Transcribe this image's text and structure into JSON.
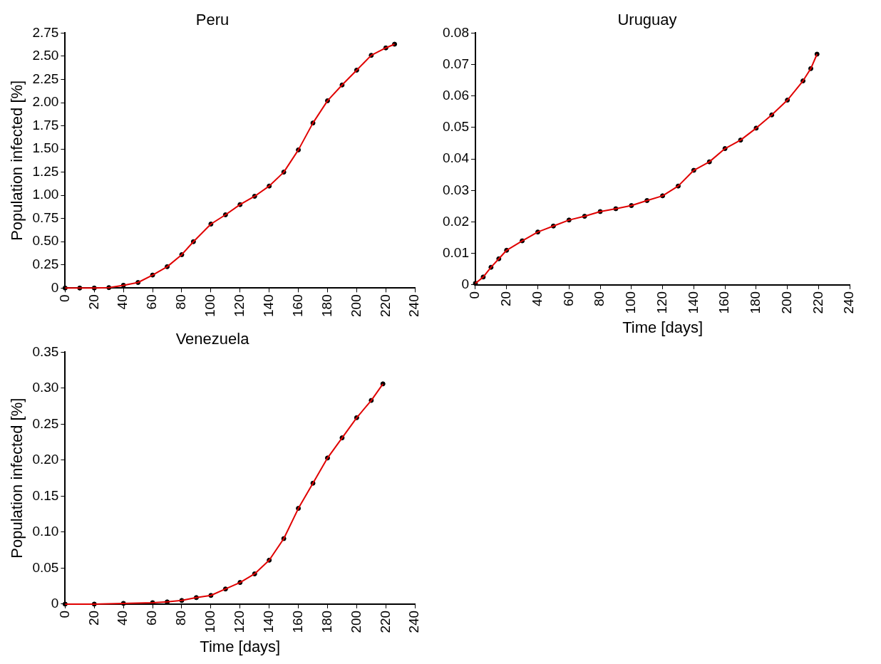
{
  "chart_data": [
    {
      "type": "scatter",
      "title": "Peru",
      "ylabel": "Population infected [%]",
      "xlim": [
        0,
        240
      ],
      "xticks": [
        0,
        20,
        40,
        60,
        80,
        100,
        120,
        140,
        160,
        180,
        200,
        220,
        240
      ],
      "ylim": [
        0,
        2.75
      ],
      "yticks": [
        0,
        {
          "value": 0.25,
          "label": "0.25"
        },
        {
          "value": 0.5,
          "label": "0.50"
        },
        {
          "value": 0.75,
          "label": "0.75"
        },
        {
          "value": 1,
          "label": "1.00"
        },
        {
          "value": 1.25,
          "label": "1.25"
        },
        {
          "value": 1.5,
          "label": "1.50"
        },
        {
          "value": 1.75,
          "label": "1.75"
        },
        {
          "value": 2,
          "label": "2.00"
        },
        {
          "value": 2.25,
          "label": "2.25"
        },
        {
          "value": 2.5,
          "label": "2.50"
        },
        {
          "value": 2.75,
          "label": "2.75"
        }
      ],
      "grid": false,
      "legend": false,
      "series": [
        {
          "type": "scatter",
          "marker": "circle",
          "color": "#000000",
          "x": [
            0,
            10,
            20,
            30,
            40,
            50,
            60,
            70,
            80,
            88,
            100,
            110,
            120,
            130,
            140,
            150,
            160,
            170,
            180,
            190,
            200,
            210,
            220,
            226
          ],
          "values": [
            0,
            0,
            0,
            0.005,
            0.03,
            0.06,
            0.14,
            0.23,
            0.36,
            0.5,
            0.69,
            0.79,
            0.9,
            0.99,
            1.1,
            1.25,
            1.49,
            1.78,
            2.02,
            2.19,
            2.35,
            2.51,
            2.59,
            2.63
          ]
        },
        {
          "type": "line",
          "marker": "none",
          "color": "#e00000",
          "x": [
            0,
            10,
            20,
            30,
            40,
            50,
            60,
            70,
            80,
            88,
            100,
            110,
            120,
            130,
            140,
            150,
            160,
            170,
            180,
            190,
            200,
            210,
            220,
            226
          ],
          "values": [
            0,
            0,
            0,
            0.005,
            0.03,
            0.06,
            0.14,
            0.23,
            0.36,
            0.5,
            0.69,
            0.79,
            0.9,
            0.99,
            1.1,
            1.25,
            1.49,
            1.78,
            2.02,
            2.19,
            2.35,
            2.51,
            2.59,
            2.63
          ]
        }
      ]
    },
    {
      "type": "scatter",
      "title": "Uruguay",
      "xlabel": "Time [days]",
      "xlim": [
        0,
        240
      ],
      "xticks": [
        0,
        20,
        40,
        60,
        80,
        100,
        120,
        140,
        160,
        180,
        200,
        220,
        240
      ],
      "ylim": [
        0,
        0.08
      ],
      "yticks": [
        0,
        0.01,
        0.02,
        0.03,
        0.04,
        0.05,
        0.06,
        0.07,
        0.08
      ],
      "grid": false,
      "legend": false,
      "series": [
        {
          "type": "scatter",
          "marker": "circle",
          "color": "#000000",
          "x": [
            0,
            5,
            10,
            15,
            20,
            30,
            40,
            50,
            60,
            70,
            80,
            90,
            100,
            110,
            120,
            130,
            140,
            150,
            160,
            170,
            180,
            190,
            200,
            210,
            215,
            219
          ],
          "values": [
            0.0005,
            0.0025,
            0.0056,
            0.0083,
            0.011,
            0.014,
            0.0168,
            0.0187,
            0.0206,
            0.0218,
            0.0233,
            0.0242,
            0.0252,
            0.0268,
            0.0283,
            0.0314,
            0.0364,
            0.0391,
            0.0433,
            0.046,
            0.0498,
            0.054,
            0.0587,
            0.0648,
            0.0687,
            0.0733
          ]
        },
        {
          "type": "line",
          "marker": "none",
          "color": "#e00000",
          "x": [
            0,
            5,
            10,
            15,
            20,
            30,
            40,
            50,
            60,
            70,
            80,
            90,
            100,
            110,
            120,
            130,
            140,
            150,
            160,
            170,
            180,
            190,
            200,
            210,
            215,
            219
          ],
          "values": [
            0.0005,
            0.0025,
            0.0056,
            0.0083,
            0.011,
            0.014,
            0.0168,
            0.0187,
            0.0206,
            0.0218,
            0.0233,
            0.0242,
            0.0252,
            0.0268,
            0.0283,
            0.0314,
            0.0364,
            0.0391,
            0.0433,
            0.046,
            0.0498,
            0.054,
            0.0587,
            0.0648,
            0.0687,
            0.0733
          ]
        }
      ]
    },
    {
      "type": "scatter",
      "title": "Venezuela",
      "xlabel": "Time [days]",
      "ylabel": "Population infected [%]",
      "xlim": [
        0,
        240
      ],
      "xticks": [
        0,
        20,
        40,
        60,
        80,
        100,
        120,
        140,
        160,
        180,
        200,
        220,
        240
      ],
      "ylim": [
        0,
        0.35
      ],
      "yticks": [
        0,
        {
          "value": 0.05,
          "label": "0.05"
        },
        {
          "value": 0.1,
          "label": "0.10"
        },
        {
          "value": 0.15,
          "label": "0.15"
        },
        {
          "value": 0.2,
          "label": "0.20"
        },
        {
          "value": 0.25,
          "label": "0.25"
        },
        {
          "value": 0.3,
          "label": "0.30"
        },
        {
          "value": 0.35,
          "label": "0.35"
        }
      ],
      "grid": false,
      "legend": false,
      "series": [
        {
          "type": "scatter",
          "marker": "circle",
          "color": "#000000",
          "x": [
            0,
            20,
            40,
            60,
            70,
            80,
            90,
            100,
            110,
            120,
            130,
            140,
            150,
            160,
            170,
            180,
            190,
            200,
            210,
            218
          ],
          "values": [
            0,
            0,
            0.001,
            0.002,
            0.003,
            0.005,
            0.009,
            0.012,
            0.021,
            0.03,
            0.042,
            0.061,
            0.091,
            0.133,
            0.168,
            0.203,
            0.231,
            0.259,
            0.283,
            0.306
          ]
        },
        {
          "type": "line",
          "marker": "none",
          "color": "#e00000",
          "x": [
            0,
            20,
            40,
            60,
            70,
            80,
            90,
            100,
            110,
            120,
            130,
            140,
            150,
            160,
            170,
            180,
            190,
            200,
            210,
            218
          ],
          "values": [
            0,
            0,
            0.001,
            0.002,
            0.003,
            0.005,
            0.009,
            0.012,
            0.021,
            0.03,
            0.042,
            0.061,
            0.091,
            0.133,
            0.168,
            0.203,
            0.231,
            0.259,
            0.283,
            0.306
          ]
        }
      ]
    }
  ]
}
